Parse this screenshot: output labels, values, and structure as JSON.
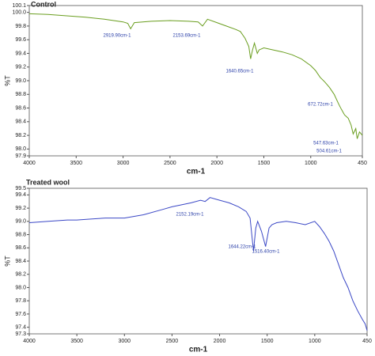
{
  "chart_data": [
    {
      "type": "line",
      "title": "Control",
      "xlabel": "cm-1",
      "ylabel": "%T",
      "color": "#6a9e1f",
      "x": [
        4000,
        3800,
        3600,
        3400,
        3200,
        3000,
        2950,
        2919.9,
        2880,
        2700,
        2500,
        2300,
        2200,
        2153.69,
        2100,
        2000,
        1900,
        1800,
        1750,
        1700,
        1660,
        1640.65,
        1620,
        1600,
        1570,
        1550,
        1500,
        1400,
        1300,
        1200,
        1100,
        1000,
        950,
        900,
        850,
        800,
        750,
        700,
        672.72,
        640,
        600,
        570,
        547.63,
        520,
        504.61,
        480,
        450
      ],
      "values": [
        99.98,
        99.97,
        99.95,
        99.93,
        99.9,
        99.86,
        99.84,
        99.76,
        99.85,
        99.87,
        99.88,
        99.87,
        99.86,
        99.8,
        99.9,
        99.85,
        99.8,
        99.75,
        99.72,
        99.62,
        99.5,
        99.32,
        99.45,
        99.55,
        99.4,
        99.45,
        99.48,
        99.45,
        99.42,
        99.38,
        99.32,
        99.22,
        99.15,
        99.05,
        98.98,
        98.9,
        98.8,
        98.65,
        98.58,
        98.5,
        98.45,
        98.35,
        98.22,
        98.3,
        98.15,
        98.25,
        98.2
      ],
      "xlim": [
        4000,
        450
      ],
      "xticks": [
        4000,
        3500,
        3000,
        2500,
        2000,
        1500,
        1000,
        450
      ],
      "ylim": [
        97.9,
        100.1
      ],
      "yticks": [
        {
          "value": 97.9,
          "label": "97.9"
        },
        {
          "value": 98,
          "label": "98.0"
        },
        98.2,
        98.4,
        98.6,
        98.8,
        {
          "value": 99,
          "label": "99.0"
        },
        99.2,
        99.4,
        99.6,
        99.8,
        {
          "value": 100,
          "label": "100.0"
        },
        100.1
      ],
      "annotations": [
        "2919.90cm-1",
        "2153.69cm-1",
        "1640.65cm-1",
        "672.72cm-1",
        "547.63cm-1",
        "504.61cm-1"
      ]
    },
    {
      "type": "line",
      "title": "Treated wool",
      "xlabel": "cm-1",
      "ylabel": "%T",
      "color": "#3b48c6",
      "x": [
        4000,
        3800,
        3600,
        3500,
        3400,
        3200,
        3000,
        2800,
        2600,
        2500,
        2400,
        2300,
        2200,
        2152.19,
        2100,
        2000,
        1900,
        1800,
        1720,
        1680,
        1644.22,
        1620,
        1600,
        1560,
        1516.4,
        1480,
        1450,
        1400,
        1300,
        1200,
        1100,
        1000,
        950,
        900,
        850,
        800,
        750,
        700,
        650,
        600,
        550,
        500,
        470,
        450
      ],
      "values": [
        98.98,
        99.0,
        99.02,
        99.02,
        99.03,
        99.05,
        99.05,
        99.1,
        99.18,
        99.22,
        99.25,
        99.28,
        99.32,
        99.3,
        99.36,
        99.32,
        99.28,
        99.22,
        99.15,
        99.05,
        98.55,
        98.9,
        99.0,
        98.85,
        98.62,
        98.9,
        98.95,
        98.98,
        99.0,
        98.98,
        98.95,
        99.0,
        98.92,
        98.82,
        98.7,
        98.55,
        98.35,
        98.15,
        98.0,
        97.8,
        97.65,
        97.52,
        97.45,
        97.35
      ],
      "xlim": [
        4000,
        450
      ],
      "xticks": [
        4000,
        3500,
        3000,
        2500,
        2000,
        1500,
        1000,
        450
      ],
      "ylim": [
        97.3,
        99.5
      ],
      "yticks": [
        97.3,
        97.4,
        97.6,
        97.8,
        {
          "value": 98,
          "label": "98.0"
        },
        98.2,
        98.4,
        98.6,
        98.8,
        {
          "value": 99,
          "label": "99.0"
        },
        99.2,
        99.4,
        99.5
      ],
      "annotations": [
        "2152.19cm-1",
        "1644.22cm-1",
        "1516.40cm-1"
      ]
    }
  ]
}
